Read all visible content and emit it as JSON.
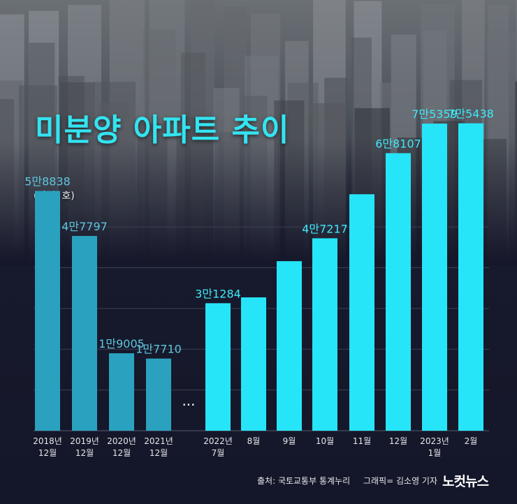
{
  "title": "미분양 아파트 추이",
  "unit_label": "(단위: 호)",
  "gap_marker": "···",
  "source": "출처: 국토교통부 통계누리",
  "credit": "그래픽= 김소영 기자",
  "logo": "노컷뉴스",
  "colors": {
    "past_bar": "#2aa1bf",
    "recent_bar": "#27e5f8",
    "title": "#33e4f2"
  },
  "chart_data": {
    "type": "bar",
    "ylim": [
      0,
      80000
    ],
    "grid": true,
    "categories": [
      [
        "2018년",
        "12월"
      ],
      [
        "2019년",
        "12월"
      ],
      [
        "2020년",
        "12월"
      ],
      [
        "2021년",
        "12월"
      ],
      [
        "2022년",
        "7월"
      ],
      [
        "8월"
      ],
      [
        "9월"
      ],
      [
        "10월"
      ],
      [
        "11월"
      ],
      [
        "12월"
      ],
      [
        "2023년",
        "1월"
      ],
      [
        "2월"
      ]
    ],
    "values": [
      58838,
      47797,
      19005,
      17710,
      31284,
      32722,
      41604,
      47217,
      58027,
      68107,
      75359,
      75438
    ],
    "group": [
      "past",
      "past",
      "past",
      "past",
      "recent",
      "recent",
      "recent",
      "recent",
      "recent",
      "recent",
      "recent",
      "recent"
    ],
    "data_labels": [
      "5만8838",
      "4만7797",
      "1만9005",
      "1만7710",
      "3만1284",
      "",
      "",
      "4만7217",
      "",
      "6만8107",
      "7만5359",
      "7만5438"
    ]
  }
}
